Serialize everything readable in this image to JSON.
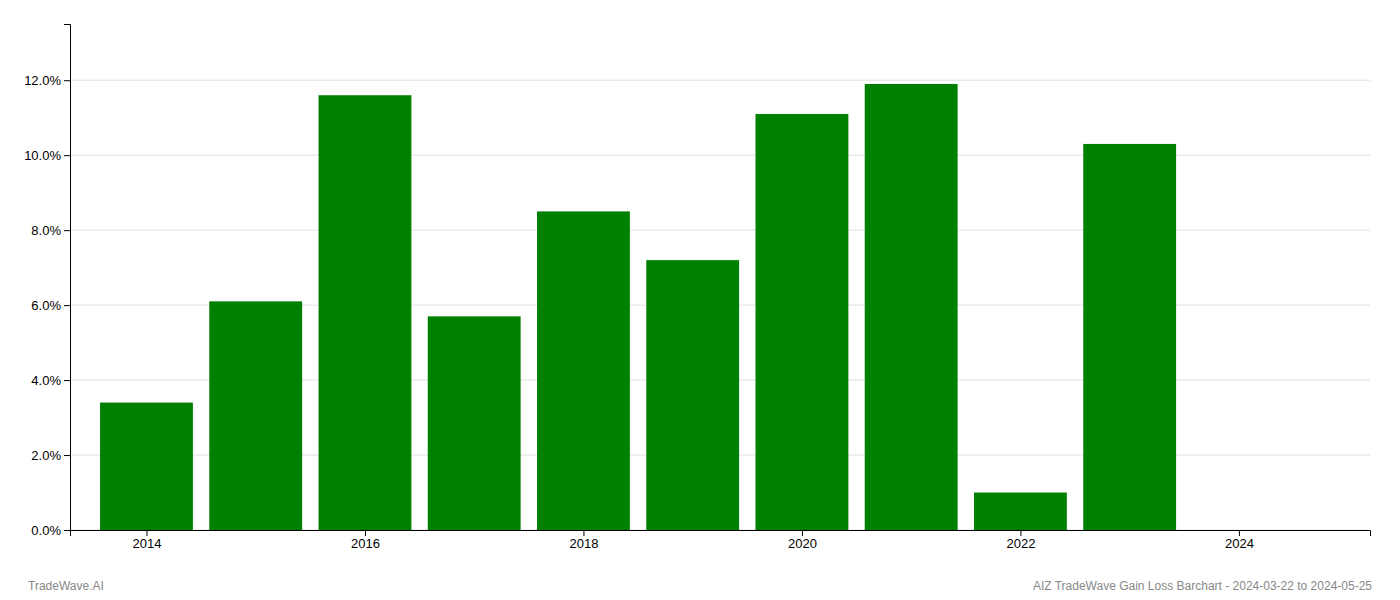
{
  "chart_data": {
    "type": "bar",
    "x": [
      2014,
      2015,
      2016,
      2017,
      2018,
      2019,
      2020,
      2021,
      2022,
      2023
    ],
    "values": [
      0.034,
      0.061,
      0.116,
      0.057,
      0.085,
      0.072,
      0.111,
      0.119,
      0.01,
      0.103
    ],
    "color": "#008000",
    "xlim": [
      2013.3,
      2025.2
    ],
    "xticks": [
      2014,
      2016,
      2018,
      2020,
      2022,
      2024
    ],
    "ylim": [
      0,
      0.135
    ],
    "yticks": [
      {
        "value": 0.0,
        "label": "0.0%"
      },
      {
        "value": 0.02,
        "label": "2.0%"
      },
      {
        "value": 0.04,
        "label": "4.0%"
      },
      {
        "value": 0.06,
        "label": "6.0%"
      },
      {
        "value": 0.08,
        "label": "8.0%"
      },
      {
        "value": 0.1,
        "label": "10.0%"
      },
      {
        "value": 0.12,
        "label": "12.0%"
      }
    ],
    "grid": true,
    "annotations": [
      "TradeWave.AI",
      "AIZ TradeWave Gain Loss Barchart - 2024-03-22 to 2024-05-25"
    ]
  }
}
